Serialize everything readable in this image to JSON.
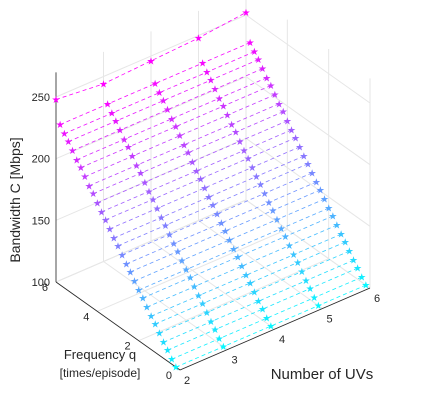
{
  "chart_data": {
    "type": "3d-line",
    "zlabel": "Bandwidth C [Mbps]",
    "ylabel_line1": "Frequency q",
    "ylabel_line2": "[times/episode]",
    "xlabel": "Number of UVs",
    "x_ticks": [
      "2",
      "3",
      "4",
      "5",
      "6"
    ],
    "y_ticks": [
      "0",
      "2",
      "4",
      "6"
    ],
    "z_ticks": [
      "100",
      "150",
      "200",
      "250"
    ],
    "xlim": [
      2,
      6
    ],
    "ylim": [
      0,
      6
    ],
    "zlim": [
      100,
      250
    ],
    "grid": true,
    "colormap": "cool (cyan at low frequency to magenta at high frequency)",
    "color_low": "#00ffff",
    "color_high": "#ff00ff",
    "star_series_x": [
      2,
      3,
      4,
      5,
      6
    ],
    "dashed_lines_per_star_column": 30,
    "series": [
      {
        "x": 2,
        "q": [
          0.2,
          0.4,
          0.6,
          0.8,
          1.0,
          1.2,
          1.4,
          1.6,
          1.8,
          2.0,
          2.2,
          2.4,
          2.6,
          2.8,
          3.0,
          3.2,
          3.4,
          3.6,
          3.8,
          4.0,
          4.2,
          4.4,
          4.6,
          4.8,
          5.0,
          5.2,
          5.4,
          5.6,
          5.8,
          6.0
        ],
        "bandwidth": [
          100,
          104,
          109,
          113,
          118,
          123,
          127,
          132,
          137,
          141,
          146,
          151,
          155,
          160,
          165,
          169,
          174,
          179,
          183,
          188,
          193,
          197,
          202,
          207,
          211,
          216,
          221,
          225,
          230,
          248
        ]
      },
      {
        "x": 3,
        "q": [
          0.2,
          0.4,
          0.6,
          0.8,
          1.0,
          1.2,
          1.4,
          1.6,
          1.8,
          2.0,
          2.2,
          2.4,
          2.6,
          2.8,
          3.0,
          3.2,
          3.4,
          3.6,
          3.8,
          4.0,
          4.2,
          4.4,
          4.6,
          4.8,
          5.0,
          5.2,
          5.4,
          5.6,
          5.8,
          6.0
        ],
        "bandwidth": [
          100,
          104,
          109,
          113,
          118,
          123,
          127,
          132,
          137,
          141,
          146,
          151,
          155,
          160,
          165,
          169,
          174,
          179,
          183,
          188,
          193,
          197,
          202,
          207,
          211,
          216,
          221,
          225,
          230,
          244
        ]
      },
      {
        "x": 4,
        "q": [
          0.2,
          0.4,
          0.6,
          0.8,
          1.0,
          1.2,
          1.4,
          1.6,
          1.8,
          2.0,
          2.2,
          2.4,
          2.6,
          2.8,
          3.0,
          3.2,
          3.4,
          3.6,
          3.8,
          4.0,
          4.2,
          4.4,
          4.6,
          4.8,
          5.0,
          5.2,
          5.4,
          5.6,
          5.8,
          6.0
        ],
        "bandwidth": [
          100,
          104,
          109,
          113,
          118,
          123,
          127,
          132,
          137,
          141,
          146,
          151,
          155,
          160,
          165,
          169,
          174,
          179,
          183,
          188,
          193,
          197,
          202,
          207,
          211,
          216,
          221,
          225,
          230,
          246
        ]
      },
      {
        "x": 5,
        "q": [
          0.2,
          0.4,
          0.6,
          0.8,
          1.0,
          1.2,
          1.4,
          1.6,
          1.8,
          2.0,
          2.2,
          2.4,
          2.6,
          2.8,
          3.0,
          3.2,
          3.4,
          3.6,
          3.8,
          4.0,
          4.2,
          4.4,
          4.6,
          4.8,
          5.0,
          5.2,
          5.4,
          5.6,
          5.8,
          6.0
        ],
        "bandwidth": [
          100,
          104,
          109,
          113,
          118,
          123,
          127,
          132,
          137,
          141,
          146,
          151,
          155,
          160,
          165,
          169,
          174,
          179,
          183,
          188,
          193,
          197,
          202,
          207,
          211,
          216,
          221,
          225,
          230,
          248
        ]
      },
      {
        "x": 6,
        "q": [
          0.2,
          0.4,
          0.6,
          0.8,
          1.0,
          1.2,
          1.4,
          1.6,
          1.8,
          2.0,
          2.2,
          2.4,
          2.6,
          2.8,
          3.0,
          3.2,
          3.4,
          3.6,
          3.8,
          4.0,
          4.2,
          4.4,
          4.6,
          4.8,
          5.0,
          5.2,
          5.4,
          5.6,
          5.8,
          6.0
        ],
        "bandwidth": [
          100,
          104,
          109,
          113,
          118,
          123,
          127,
          132,
          137,
          141,
          146,
          151,
          155,
          160,
          165,
          169,
          174,
          179,
          183,
          188,
          193,
          197,
          202,
          207,
          211,
          216,
          221,
          225,
          230,
          252
        ]
      }
    ]
  }
}
